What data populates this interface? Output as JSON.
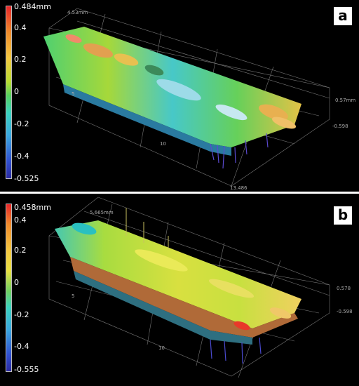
{
  "panel_a": {
    "tag": "a",
    "scale_labels": {
      "max": "0.484mm",
      "t1": "0.4",
      "t2": "0.2",
      "t3": "0",
      "t4": "-0.2",
      "t5": "-0.4",
      "min": "-0.525"
    },
    "axis_labels": {
      "top": "4.53mm",
      "tick5": "5",
      "tick10": "10",
      "right_upper": "0.57mm",
      "right_lower": "-0.598",
      "bottom": "13.486"
    }
  },
  "panel_b": {
    "tag": "b",
    "scale_labels": {
      "max": "0.458mm",
      "t1": "0.4",
      "t2": "0.2",
      "t3": "0",
      "t4": "-0.2",
      "t5": "-0.4",
      "min": "-0.555"
    },
    "axis_labels": {
      "top": "5.665mm",
      "tick5": "5",
      "tick10": "10",
      "right_upper": "0.578",
      "right_lower": "-0.598"
    }
  },
  "colors": {
    "high": "#e83a2a",
    "upper": "#f2b340",
    "mid": "#9ad63c",
    "low": "#3ec8d0",
    "min": "#2a2fb8"
  }
}
